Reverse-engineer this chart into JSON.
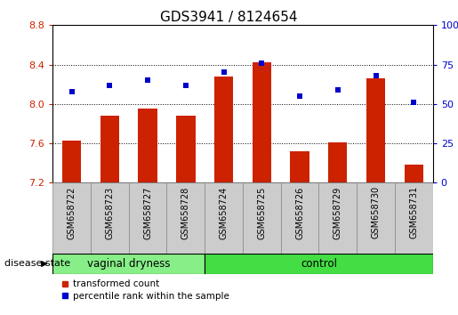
{
  "title": "GDS3941 / 8124654",
  "samples": [
    "GSM658722",
    "GSM658723",
    "GSM658727",
    "GSM658728",
    "GSM658724",
    "GSM658725",
    "GSM658726",
    "GSM658729",
    "GSM658730",
    "GSM658731"
  ],
  "bar_values": [
    7.63,
    7.88,
    7.95,
    7.88,
    8.28,
    8.42,
    7.52,
    7.61,
    8.26,
    7.38
  ],
  "dot_values": [
    58,
    62,
    65,
    62,
    70,
    76,
    55,
    59,
    68,
    51
  ],
  "ylim_left": [
    7.2,
    8.8
  ],
  "ylim_right": [
    0,
    100
  ],
  "yticks_left": [
    7.2,
    7.6,
    8.0,
    8.4,
    8.8
  ],
  "yticks_right": [
    0,
    25,
    50,
    75,
    100
  ],
  "bar_color": "#cc2200",
  "dot_color": "#0000cc",
  "vaginal_count": 4,
  "control_count": 6,
  "group_label_vaginal": "vaginal dryness",
  "group_label_control": "control",
  "disease_state_label": "disease state",
  "legend_bar_label": "transformed count",
  "legend_dot_label": "percentile rank within the sample",
  "tick_label_color_left": "#cc2200",
  "tick_label_color_right": "#0000cc",
  "bar_width": 0.5,
  "baseline": 7.2,
  "cell_bg_color": "#cccccc",
  "cell_border_color": "#888888",
  "vaginal_green": "#88ee88",
  "control_green": "#44dd44",
  "group_border_color": "#000000"
}
